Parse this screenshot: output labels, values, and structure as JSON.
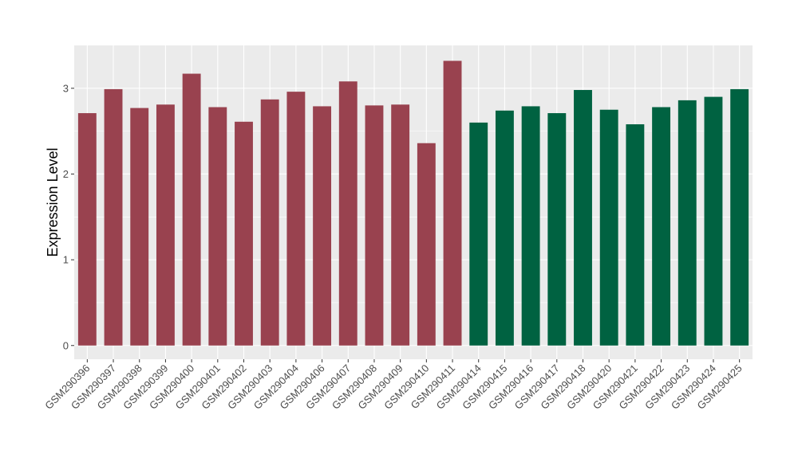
{
  "chart_data": {
    "type": "bar",
    "title": "",
    "xlabel": "",
    "ylabel": "Expression Level",
    "ylim": [
      -0.16,
      3.5
    ],
    "yticks": [
      0,
      1,
      2,
      3
    ],
    "grid": true,
    "legend": "none",
    "categories": [
      "GSM290396",
      "GSM290397",
      "GSM290398",
      "GSM290399",
      "GSM290400",
      "GSM290401",
      "GSM290402",
      "GSM290403",
      "GSM290404",
      "GSM290406",
      "GSM290407",
      "GSM290408",
      "GSM290409",
      "GSM290410",
      "GSM290411",
      "GSM290414",
      "GSM290415",
      "GSM290416",
      "GSM290417",
      "GSM290418",
      "GSM290420",
      "GSM290421",
      "GSM290422",
      "GSM290423",
      "GSM290424",
      "GSM290425"
    ],
    "values": [
      2.71,
      2.99,
      2.77,
      2.81,
      3.17,
      2.78,
      2.61,
      2.87,
      2.96,
      2.79,
      3.08,
      2.8,
      2.81,
      2.36,
      3.32,
      2.6,
      2.74,
      2.79,
      2.71,
      2.98,
      2.75,
      2.58,
      2.78,
      2.86,
      2.9,
      2.99
    ],
    "colors": [
      "#99424f",
      "#99424f",
      "#99424f",
      "#99424f",
      "#99424f",
      "#99424f",
      "#99424f",
      "#99424f",
      "#99424f",
      "#99424f",
      "#99424f",
      "#99424f",
      "#99424f",
      "#99424f",
      "#99424f",
      "#006241",
      "#006241",
      "#006241",
      "#006241",
      "#006241",
      "#006241",
      "#006241",
      "#006241",
      "#006241",
      "#006241",
      "#006241"
    ]
  }
}
